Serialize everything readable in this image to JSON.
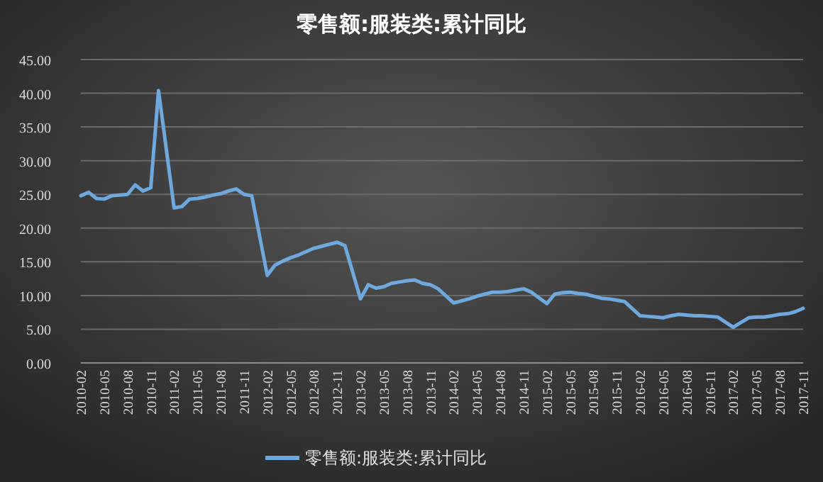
{
  "chart_data": {
    "type": "line",
    "title": "零售额:服装类:累计同比",
    "x": [
      "2010-02",
      "2010-03",
      "2010-04",
      "2010-05",
      "2010-06",
      "2010-07",
      "2010-08",
      "2010-09",
      "2010-10",
      "2010-11",
      "2010-12",
      "2011-02",
      "2011-03",
      "2011-04",
      "2011-05",
      "2011-06",
      "2011-07",
      "2011-08",
      "2011-09",
      "2011-10",
      "2011-11",
      "2011-12",
      "2012-02",
      "2012-03",
      "2012-04",
      "2012-05",
      "2012-06",
      "2012-07",
      "2012-08",
      "2012-09",
      "2012-10",
      "2012-11",
      "2012-12",
      "2013-02",
      "2013-03",
      "2013-04",
      "2013-05",
      "2013-06",
      "2013-07",
      "2013-08",
      "2013-09",
      "2013-10",
      "2013-11",
      "2013-12",
      "2014-02",
      "2014-03",
      "2014-04",
      "2014-05",
      "2014-06",
      "2014-07",
      "2014-08",
      "2014-09",
      "2014-10",
      "2014-11",
      "2014-12",
      "2015-02",
      "2015-03",
      "2015-04",
      "2015-05",
      "2015-06",
      "2015-07",
      "2015-08",
      "2015-09",
      "2015-10",
      "2015-11",
      "2015-12",
      "2016-02",
      "2016-03",
      "2016-04",
      "2016-05",
      "2016-06",
      "2016-07",
      "2016-08",
      "2016-09",
      "2016-10",
      "2016-11",
      "2016-12",
      "2017-02",
      "2017-03",
      "2017-04",
      "2017-05",
      "2017-06",
      "2017-07",
      "2017-08",
      "2017-09",
      "2017-10",
      "2017-11"
    ],
    "series": [
      {
        "name": "零售额:服装类:累计同比",
        "color": "#6fa8dc",
        "values": [
          24.8,
          25.3,
          24.4,
          24.3,
          24.8,
          24.9,
          25.0,
          26.4,
          25.5,
          26.0,
          40.4,
          23.0,
          23.2,
          24.3,
          24.4,
          24.6,
          24.9,
          25.1,
          25.5,
          25.8,
          25.0,
          24.8,
          13.0,
          14.5,
          15.1,
          15.6,
          16.0,
          16.5,
          17.0,
          17.3,
          17.6,
          17.9,
          17.4,
          9.5,
          11.6,
          11.1,
          11.3,
          11.8,
          12.0,
          12.2,
          12.3,
          11.8,
          11.6,
          11.0,
          8.9,
          9.2,
          9.5,
          9.9,
          10.2,
          10.5,
          10.5,
          10.6,
          10.8,
          11.0,
          10.5,
          8.8,
          10.2,
          10.4,
          10.5,
          10.3,
          10.2,
          9.9,
          9.6,
          9.5,
          9.3,
          9.1,
          7.0,
          6.9,
          6.8,
          6.7,
          7.0,
          7.2,
          7.1,
          7.0,
          7.0,
          6.9,
          6.8,
          5.3,
          6.0,
          6.7,
          6.8,
          6.8,
          7.0,
          7.2,
          7.3,
          7.6,
          8.1
        ]
      }
    ],
    "xlim": [
      "2010-02",
      "2017-11"
    ],
    "xticks": [
      "2010-02",
      "2010-05",
      "2010-08",
      "2010-11",
      "2011-02",
      "2011-05",
      "2011-08",
      "2011-11",
      "2012-02",
      "2012-05",
      "2012-08",
      "2012-11",
      "2013-02",
      "2013-05",
      "2013-08",
      "2013-11",
      "2014-02",
      "2014-05",
      "2014-08",
      "2014-11",
      "2015-02",
      "2015-05",
      "2015-08",
      "2015-11",
      "2016-02",
      "2016-05",
      "2016-08",
      "2016-11",
      "2017-02",
      "2017-05",
      "2017-08",
      "2017-11"
    ],
    "ylim": [
      0,
      45
    ],
    "yticks": [
      {
        "value": 0,
        "label": "0.00"
      },
      {
        "value": 5,
        "label": "5.00"
      },
      {
        "value": 10,
        "label": "10.00"
      },
      {
        "value": 15,
        "label": "15.00"
      },
      {
        "value": 20,
        "label": "20.00"
      },
      {
        "value": 25,
        "label": "25.00"
      },
      {
        "value": 30,
        "label": "30.00"
      },
      {
        "value": 35,
        "label": "35.00"
      },
      {
        "value": 40,
        "label": "40.00"
      },
      {
        "value": 45,
        "label": "45.00"
      }
    ],
    "grid": "y",
    "legend": "bottom"
  }
}
